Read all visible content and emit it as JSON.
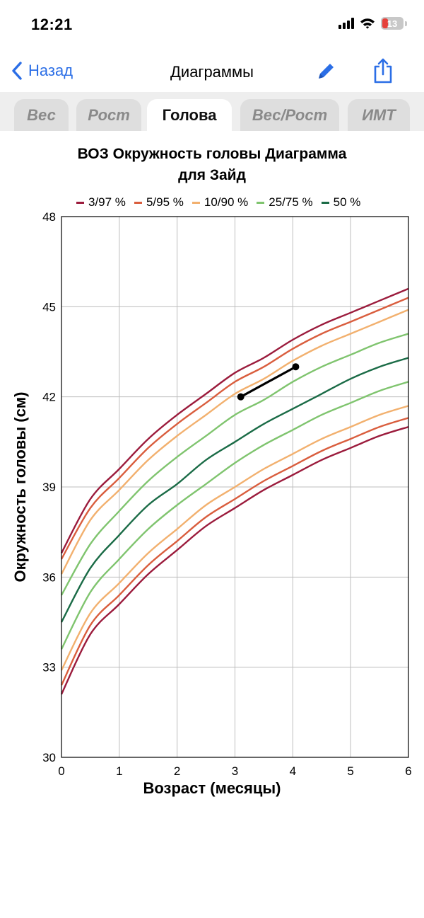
{
  "status_bar": {
    "time": "12:21",
    "battery": "13",
    "icons": [
      "signal-icon",
      "wifi-icon",
      "battery-icon"
    ]
  },
  "nav": {
    "back_label": "Назад",
    "title": "Диаграммы",
    "icons": [
      "chevron-left-icon",
      "pencil-icon",
      "share-icon"
    ],
    "accent_color": "#2b6ee6"
  },
  "tabs": [
    {
      "label": "Вес",
      "active": false
    },
    {
      "label": "Рост",
      "active": false
    },
    {
      "label": "Голова",
      "active": true
    },
    {
      "label": "Вес/Рост",
      "active": false
    },
    {
      "label": "ИМТ",
      "active": false
    }
  ],
  "chart_data": {
    "type": "line",
    "title_lines": [
      "ВОЗ Окружность головы Диаграмма",
      "для Зайд"
    ],
    "xlabel": "Возраст (месяцы)",
    "ylabel": "Окружность головы (см)",
    "xlim": [
      0,
      6
    ],
    "ylim": [
      30,
      48
    ],
    "xticks": [
      "0",
      "1",
      "2",
      "3",
      "4",
      "5",
      "6"
    ],
    "yticks": [
      "30",
      "33",
      "36",
      "39",
      "42",
      "45",
      "48"
    ],
    "grid": true,
    "legend_position": "top",
    "legend": [
      {
        "label": "3/97 %",
        "color": "#9b1b3c"
      },
      {
        "label": "5/95 %",
        "color": "#d95d3d"
      },
      {
        "label": "10/90 %",
        "color": "#f2b06e"
      },
      {
        "label": "25/75 %",
        "color": "#7fc46e"
      },
      {
        "label": "50 %",
        "color": "#1a6b46"
      }
    ],
    "x": [
      0,
      0.5,
      1,
      1.5,
      2,
      2.5,
      3,
      3.5,
      4,
      4.5,
      5,
      5.5,
      6
    ],
    "series": [
      {
        "color": "#9b1b3c",
        "values": [
          32.1,
          34.1,
          35.1,
          36.1,
          36.9,
          37.7,
          38.3,
          38.9,
          39.4,
          39.9,
          40.3,
          40.7,
          41.0
        ]
      },
      {
        "color": "#d95d3d",
        "values": [
          32.4,
          34.4,
          35.4,
          36.4,
          37.2,
          38.0,
          38.6,
          39.2,
          39.7,
          40.2,
          40.6,
          41.0,
          41.3
        ]
      },
      {
        "color": "#f2b06e",
        "values": [
          32.9,
          34.8,
          35.8,
          36.8,
          37.6,
          38.4,
          39.0,
          39.6,
          40.1,
          40.6,
          41.0,
          41.4,
          41.7
        ]
      },
      {
        "color": "#7fc46e",
        "values": [
          33.6,
          35.5,
          36.6,
          37.6,
          38.4,
          39.1,
          39.8,
          40.4,
          40.9,
          41.4,
          41.8,
          42.2,
          42.5
        ]
      },
      {
        "color": "#1a6b46",
        "values": [
          34.5,
          36.3,
          37.4,
          38.4,
          39.1,
          39.9,
          40.5,
          41.1,
          41.6,
          42.1,
          42.6,
          43.0,
          43.3
        ]
      },
      {
        "color": "#7fc46e",
        "values": [
          35.4,
          37.1,
          38.2,
          39.2,
          40.0,
          40.7,
          41.4,
          41.9,
          42.5,
          43.0,
          43.4,
          43.8,
          44.1
        ]
      },
      {
        "color": "#f2b06e",
        "values": [
          36.1,
          37.9,
          38.9,
          39.9,
          40.7,
          41.4,
          42.1,
          42.6,
          43.2,
          43.7,
          44.1,
          44.5,
          44.9
        ]
      },
      {
        "color": "#d95d3d",
        "values": [
          36.6,
          38.3,
          39.3,
          40.3,
          41.1,
          41.8,
          42.5,
          43.0,
          43.6,
          44.1,
          44.5,
          44.9,
          45.3
        ]
      },
      {
        "color": "#9b1b3c",
        "values": [
          36.8,
          38.6,
          39.6,
          40.6,
          41.4,
          42.1,
          42.8,
          43.3,
          43.9,
          44.4,
          44.8,
          45.2,
          45.6
        ]
      }
    ],
    "measurements": {
      "color": "#000000",
      "points": [
        {
          "x": 3.1,
          "y": 42.0
        },
        {
          "x": 4.05,
          "y": 43.0
        }
      ]
    }
  }
}
